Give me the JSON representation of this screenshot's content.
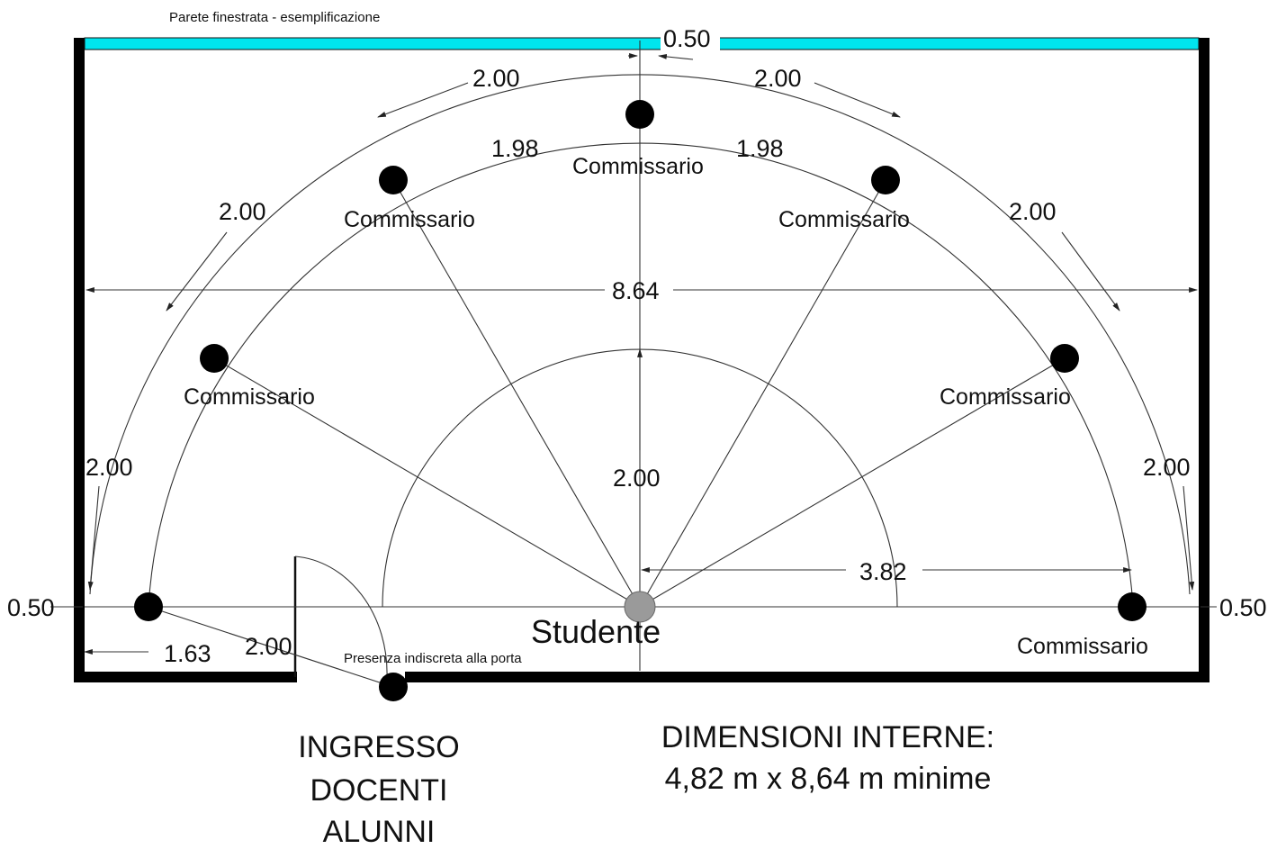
{
  "window_label": "Parete finestrata - esemplificazione",
  "window_color": "#00e5ee",
  "dimensions": {
    "top_gap": "0.50",
    "arc_top_left": "2.00",
    "arc_top_right": "2.00",
    "chord_left": "1.98",
    "chord_right": "1.98",
    "arc_mid_left": "2.00",
    "arc_mid_right": "2.00",
    "width": "8.64",
    "arc_low_left": "2.00",
    "arc_low_right": "2.00",
    "radius_inner": "2.00",
    "radius_outer": "3.82",
    "side_left": "0.50",
    "side_right": "0.50",
    "door_offset": "1.63",
    "door_distance": "2.00"
  },
  "people": {
    "commissario_label": "Commissario",
    "student_label": "Studente",
    "door_person_label": "Presenza indiscreta alla porta"
  },
  "entrance": {
    "line1": "INGRESSO",
    "line2": "DOCENTI",
    "line3": "ALUNNI"
  },
  "internal_dimensions": {
    "line1": "DIMENSIONI INTERNE:",
    "line2": "4,82 m x 8,64 m minime"
  }
}
